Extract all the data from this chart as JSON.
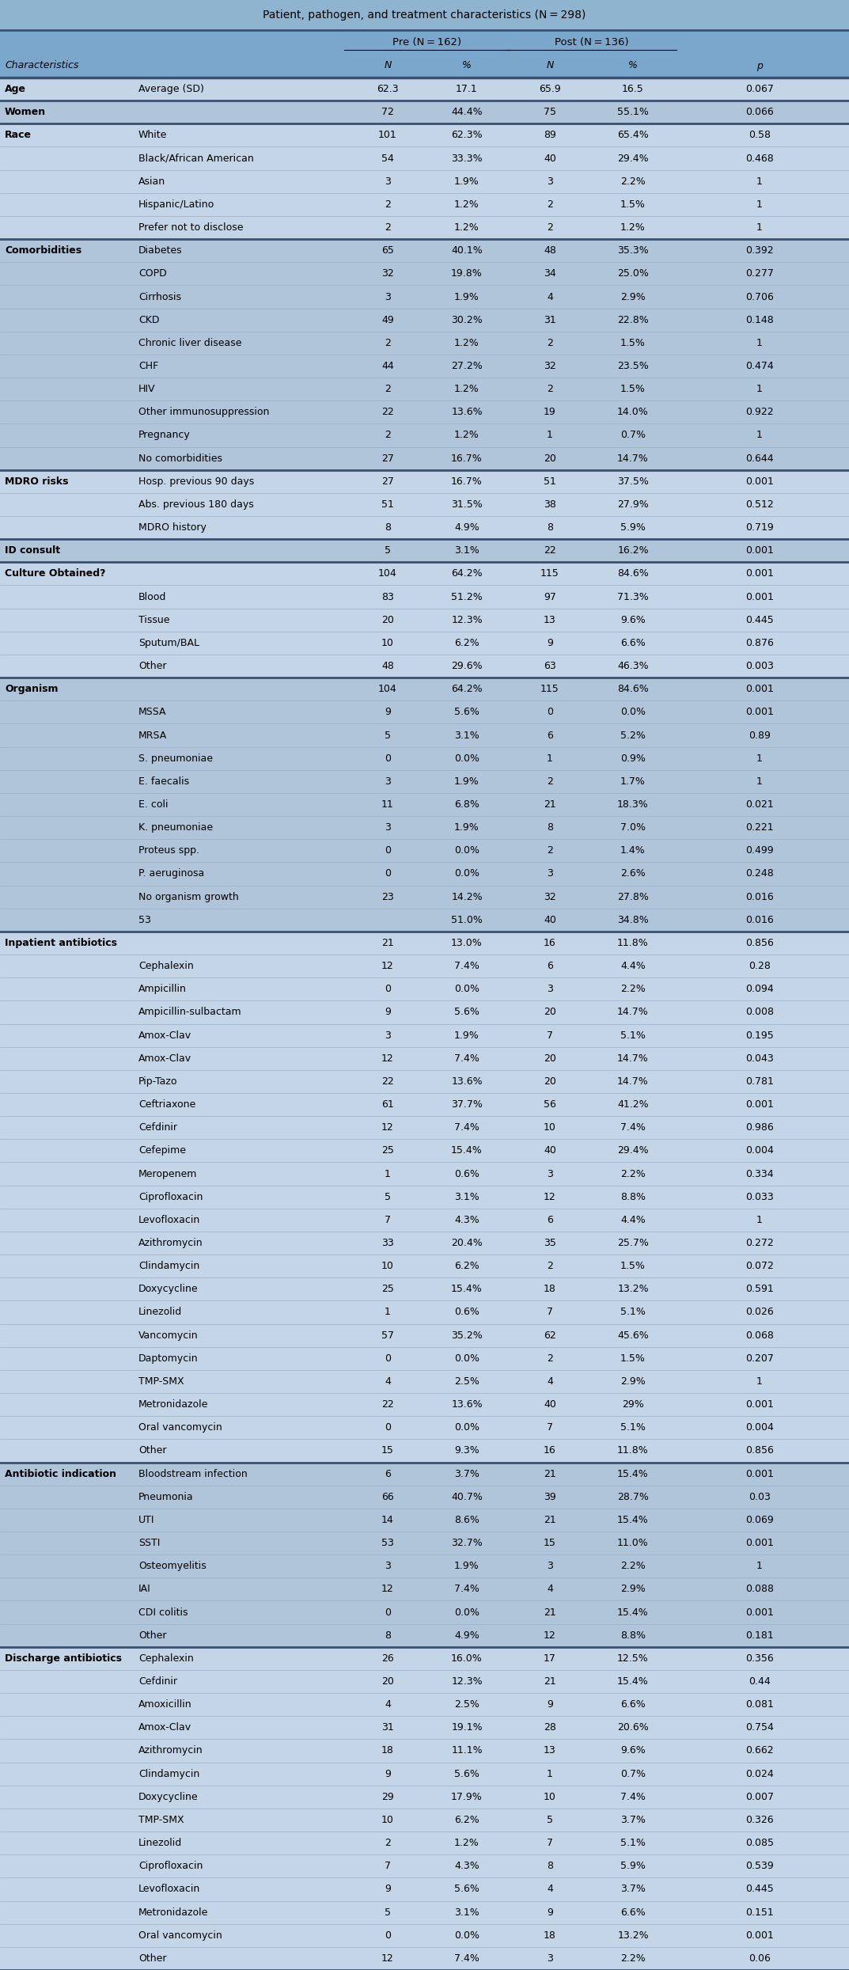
{
  "title": "Patient, pathogen, and treatment characteristics (N = 298)",
  "bg_color": "#B8CCE4",
  "header_bg": "#7BA7CC",
  "title_bg": "#8FB4D0",
  "row_light": "#C5D5E8",
  "row_dark": "#B0C4DA",
  "sep_light": "#9AAFC5",
  "sep_heavy": "#3A5070",
  "actual_rows": [
    [
      "Age",
      "Average (SD)",
      "62.3",
      "17.1",
      "65.9",
      "16.5",
      "0.067"
    ],
    [
      "Women",
      "",
      "72",
      "44.4%",
      "75",
      "55.1%",
      "0.066"
    ],
    [
      "Race",
      "White",
      "101",
      "62.3%",
      "89",
      "65.4%",
      "0.58"
    ],
    [
      "",
      "Black/African American",
      "54",
      "33.3%",
      "40",
      "29.4%",
      "0.468"
    ],
    [
      "",
      "Asian",
      "3",
      "1.9%",
      "3",
      "2.2%",
      "1"
    ],
    [
      "",
      "Hispanic/Latino",
      "2",
      "1.2%",
      "2",
      "1.5%",
      "1"
    ],
    [
      "",
      "Prefer not to disclose",
      "2",
      "1.2%",
      "2",
      "1.2%",
      "1"
    ],
    [
      "Comorbidities",
      "Diabetes",
      "65",
      "40.1%",
      "48",
      "35.3%",
      "0.392"
    ],
    [
      "",
      "COPD",
      "32",
      "19.8%",
      "34",
      "25.0%",
      "0.277"
    ],
    [
      "",
      "Cirrhosis",
      "3",
      "1.9%",
      "4",
      "2.9%",
      "0.706"
    ],
    [
      "",
      "CKD",
      "49",
      "30.2%",
      "31",
      "22.8%",
      "0.148"
    ],
    [
      "",
      "Chronic liver disease",
      "2",
      "1.2%",
      "2",
      "1.5%",
      "1"
    ],
    [
      "",
      "CHF",
      "44",
      "27.2%",
      "32",
      "23.5%",
      "0.474"
    ],
    [
      "",
      "HIV",
      "2",
      "1.2%",
      "2",
      "1.5%",
      "1"
    ],
    [
      "",
      "Other immunosuppression",
      "22",
      "13.6%",
      "19",
      "14.0%",
      "0.922"
    ],
    [
      "",
      "Pregnancy",
      "2",
      "1.2%",
      "1",
      "0.7%",
      "1"
    ],
    [
      "",
      "No comorbidities",
      "27",
      "16.7%",
      "20",
      "14.7%",
      "0.644"
    ],
    [
      "MDRO risks",
      "Hosp. previous 90 days",
      "27",
      "16.7%",
      "51",
      "37.5%",
      "0.001"
    ],
    [
      "",
      "Abs. previous 180 days",
      "51",
      "31.5%",
      "38",
      "27.9%",
      "0.512"
    ],
    [
      "",
      "MDRO history",
      "8",
      "4.9%",
      "8",
      "5.9%",
      "0.719"
    ],
    [
      "ID consult",
      "",
      "5",
      "3.1%",
      "22",
      "16.2%",
      "0.001"
    ],
    [
      "Culture Obtained?",
      "",
      "104",
      "64.2%",
      "115",
      "84.6%",
      "0.001"
    ],
    [
      "",
      "Blood",
      "83",
      "51.2%",
      "97",
      "71.3%",
      "0.001"
    ],
    [
      "",
      "Tissue",
      "20",
      "12.3%",
      "13",
      "9.6%",
      "0.445"
    ],
    [
      "",
      "Sputum/BAL",
      "10",
      "6.2%",
      "9",
      "6.6%",
      "0.876"
    ],
    [
      "",
      "Other",
      "48",
      "29.6%",
      "63",
      "46.3%",
      "0.003"
    ],
    [
      "Organism",
      "",
      "104",
      "64.2%",
      "115",
      "84.6%",
      "0.001"
    ],
    [
      "",
      "MSSA",
      "9",
      "5.6%",
      "0",
      "0.0%",
      "0.001"
    ],
    [
      "",
      "MRSA",
      "5",
      "3.1%",
      "6",
      "5.2%",
      "0.89"
    ],
    [
      "",
      "S. pneumoniae",
      "0",
      "0.0%",
      "1",
      "0.9%",
      "1"
    ],
    [
      "",
      "E. faecalis",
      "3",
      "1.9%",
      "2",
      "1.7%",
      "1"
    ],
    [
      "",
      "E. coli",
      "11",
      "6.8%",
      "21",
      "18.3%",
      "0.021"
    ],
    [
      "",
      "K. pneumoniae",
      "3",
      "1.9%",
      "8",
      "7.0%",
      "0.221"
    ],
    [
      "",
      "Proteus spp.",
      "0",
      "0.0%",
      "2",
      "1.4%",
      "0.499"
    ],
    [
      "",
      "P. aeruginosa",
      "0",
      "0.0%",
      "3",
      "2.6%",
      "0.248"
    ],
    [
      "",
      "No organism growth",
      "23",
      "14.2%",
      "32",
      "27.8%",
      "0.016"
    ],
    [
      "",
      "53",
      "51.0%",
      "40",
      "34.8%",
      "0.016",
      ""
    ],
    [
      "Inpatient antibiotics",
      "",
      "21",
      "13.0%",
      "16",
      "11.8%",
      "0.856"
    ],
    [
      "",
      "Cephalexin",
      "12",
      "7.4%",
      "6",
      "4.4%",
      "0.28"
    ],
    [
      "",
      "Ampicillin",
      "0",
      "0.0%",
      "3",
      "2.2%",
      "0.094"
    ],
    [
      "",
      "Ampicillin-sulbactam",
      "9",
      "5.6%",
      "20",
      "14.7%",
      "0.008"
    ],
    [
      "",
      "Amox-Clav",
      "3",
      "1.9%",
      "7",
      "5.1%",
      "0.195"
    ],
    [
      "",
      "Amox-Clav",
      "12",
      "7.4%",
      "20",
      "14.7%",
      "0.043"
    ],
    [
      "",
      "Pip-Tazo",
      "22",
      "13.6%",
      "20",
      "14.7%",
      "0.781"
    ],
    [
      "",
      "Ceftriaxone",
      "61",
      "37.7%",
      "56",
      "41.2%",
      "0.001"
    ],
    [
      "",
      "Cefdinir",
      "12",
      "7.4%",
      "10",
      "7.4%",
      "0.986"
    ],
    [
      "",
      "Cefepime",
      "25",
      "15.4%",
      "40",
      "29.4%",
      "0.004"
    ],
    [
      "",
      "Meropenem",
      "1",
      "0.6%",
      "3",
      "2.2%",
      "0.334"
    ],
    [
      "",
      "Ciprofloxacin",
      "5",
      "3.1%",
      "12",
      "8.8%",
      "0.033"
    ],
    [
      "",
      "Levofloxacin",
      "7",
      "4.3%",
      "6",
      "4.4%",
      "1"
    ],
    [
      "",
      "Azithromycin",
      "33",
      "20.4%",
      "35",
      "25.7%",
      "0.272"
    ],
    [
      "",
      "Clindamycin",
      "10",
      "6.2%",
      "2",
      "1.5%",
      "0.072"
    ],
    [
      "",
      "Doxycycline",
      "25",
      "15.4%",
      "18",
      "13.2%",
      "0.591"
    ],
    [
      "",
      "Linezolid",
      "1",
      "0.6%",
      "7",
      "5.1%",
      "0.026"
    ],
    [
      "",
      "Vancomycin",
      "57",
      "35.2%",
      "62",
      "45.6%",
      "0.068"
    ],
    [
      "",
      "Daptomycin",
      "0",
      "0.0%",
      "2",
      "1.5%",
      "0.207"
    ],
    [
      "",
      "TMP-SMX",
      "4",
      "2.5%",
      "4",
      "2.9%",
      "1"
    ],
    [
      "",
      "Metronidazole",
      "22",
      "13.6%",
      "40",
      "29%",
      "0.001"
    ],
    [
      "",
      "Oral vancomycin",
      "0",
      "0.0%",
      "7",
      "5.1%",
      "0.004"
    ],
    [
      "",
      "Other",
      "15",
      "9.3%",
      "16",
      "11.8%",
      "0.856"
    ],
    [
      "Antibiotic indication",
      "Bloodstream infection",
      "6",
      "3.7%",
      "21",
      "15.4%",
      "0.001"
    ],
    [
      "",
      "Pneumonia",
      "66",
      "40.7%",
      "39",
      "28.7%",
      "0.03"
    ],
    [
      "",
      "UTI",
      "14",
      "8.6%",
      "21",
      "15.4%",
      "0.069"
    ],
    [
      "",
      "SSTI",
      "53",
      "32.7%",
      "15",
      "11.0%",
      "0.001"
    ],
    [
      "",
      "Osteomyelitis",
      "3",
      "1.9%",
      "3",
      "2.2%",
      "1"
    ],
    [
      "",
      "IAI",
      "12",
      "7.4%",
      "4",
      "2.9%",
      "0.088"
    ],
    [
      "",
      "CDI colitis",
      "0",
      "0.0%",
      "21",
      "15.4%",
      "0.001"
    ],
    [
      "",
      "Other",
      "8",
      "4.9%",
      "12",
      "8.8%",
      "0.181"
    ],
    [
      "Discharge antibiotics",
      "Cephalexin",
      "26",
      "16.0%",
      "17",
      "12.5%",
      "0.356"
    ],
    [
      "",
      "Cefdinir",
      "20",
      "12.3%",
      "21",
      "15.4%",
      "0.44"
    ],
    [
      "",
      "Amoxicillin",
      "4",
      "2.5%",
      "9",
      "6.6%",
      "0.081"
    ],
    [
      "",
      "Amox-Clav",
      "31",
      "19.1%",
      "28",
      "20.6%",
      "0.754"
    ],
    [
      "",
      "Azithromycin",
      "18",
      "11.1%",
      "13",
      "9.6%",
      "0.662"
    ],
    [
      "",
      "Clindamycin",
      "9",
      "5.6%",
      "1",
      "0.7%",
      "0.024"
    ],
    [
      "",
      "Doxycycline",
      "29",
      "17.9%",
      "10",
      "7.4%",
      "0.007"
    ],
    [
      "",
      "TMP-SMX",
      "10",
      "6.2%",
      "5",
      "3.7%",
      "0.326"
    ],
    [
      "",
      "Linezolid",
      "2",
      "1.2%",
      "7",
      "5.1%",
      "0.085"
    ],
    [
      "",
      "Ciprofloxacin",
      "7",
      "4.3%",
      "8",
      "5.9%",
      "0.539"
    ],
    [
      "",
      "Levofloxacin",
      "9",
      "5.6%",
      "4",
      "3.7%",
      "0.445"
    ],
    [
      "",
      "Metronidazole",
      "5",
      "3.1%",
      "9",
      "6.6%",
      "0.151"
    ],
    [
      "",
      "Oral vancomycin",
      "0",
      "0.0%",
      "18",
      "13.2%",
      "0.001"
    ],
    [
      "",
      "Other",
      "12",
      "7.4%",
      "3",
      "2.2%",
      "0.06"
    ]
  ]
}
